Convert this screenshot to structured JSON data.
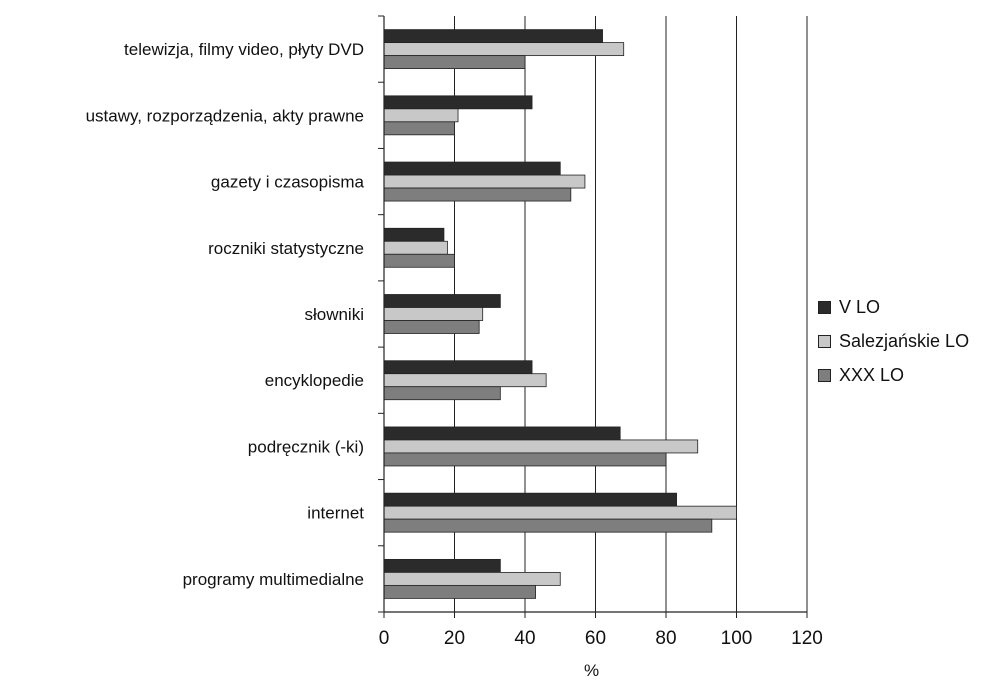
{
  "chart_data": {
    "type": "bar",
    "orientation": "horizontal",
    "title": "",
    "xlabel": "%",
    "ylabel": "",
    "xlim": [
      0,
      120
    ],
    "xticks": [
      0,
      20,
      40,
      60,
      80,
      100,
      120
    ],
    "grid": "vertical",
    "legend": "right",
    "categories": [
      "telewizja, filmy video, płyty DVD",
      "ustawy, rozporządzenia, akty prawne",
      "gazety i czasopisma",
      "roczniki statystyczne",
      "słowniki",
      "encyklopedie",
      "podręcznik (-ki)",
      "internet",
      "programy multimedialne"
    ],
    "series": [
      {
        "name": "V LO",
        "color": "#2b2b2b",
        "values": [
          62,
          42,
          50,
          17,
          33,
          42,
          67,
          83,
          33
        ]
      },
      {
        "name": "Salezjańskie LO",
        "color": "#c8c8c8",
        "values": [
          68,
          21,
          57,
          18,
          28,
          46,
          89,
          100,
          50
        ]
      },
      {
        "name": "XXX LO",
        "color": "#7e7e7e",
        "values": [
          40,
          20,
          53,
          20,
          27,
          33,
          80,
          93,
          43
        ]
      }
    ]
  }
}
